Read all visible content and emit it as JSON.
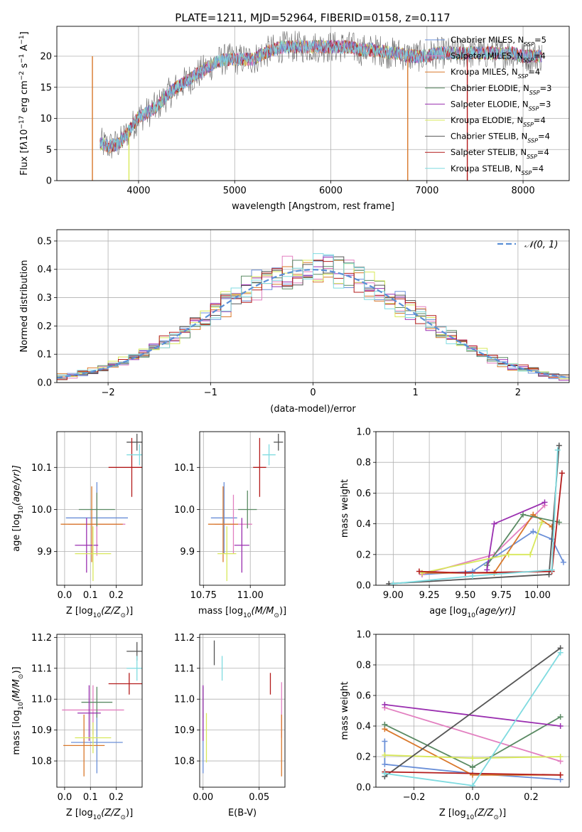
{
  "figure": {
    "title": "PLATE=1211, MJD=52964, FIBERID=0158, z=0.117"
  },
  "series": [
    {
      "name": "Chabrier MILES",
      "nssp": "5",
      "color": "#6a8fd8"
    },
    {
      "name": "Salpeter MILES",
      "nssp": "4",
      "color": "#e27fc0"
    },
    {
      "name": "Kroupa MILES",
      "nssp": "4",
      "color": "#d9782b"
    },
    {
      "name": "Chabrier ELODIE",
      "nssp": "3",
      "color": "#5a8a63"
    },
    {
      "name": "Salpeter ELODIE",
      "nssp": "3",
      "color": "#9a2fb0"
    },
    {
      "name": "Kroupa ELODIE",
      "nssp": "4",
      "color": "#d8e85a"
    },
    {
      "name": "Chabrier STELIB",
      "nssp": "4",
      "color": "#555555"
    },
    {
      "name": "Salpeter STELIB",
      "nssp": "4",
      "color": "#b31b1b"
    },
    {
      "name": "Kroupa STELIB",
      "nssp": "4",
      "color": "#7fdbe0"
    }
  ],
  "chart_data": [
    {
      "id": "spectrum",
      "type": "line",
      "xlabel": "wavelength [Angstrom, rest frame]",
      "ylabel_main": "Flux [f",
      "ylabel_sub": "λ",
      "ylabel_rest": "10",
      "ylabel_exp1": "−17",
      "ylabel_mid": " erg cm",
      "ylabel_exp2": "−2",
      "ylabel_mid2": " s",
      "ylabel_exp3": "−1",
      "ylabel_end": " A",
      "ylabel_exp4": "−1",
      "ylabel_close": "]",
      "xlim": [
        3150,
        8480
      ],
      "ylim": [
        0,
        24.8
      ],
      "xticks": [
        4000,
        5000,
        6000,
        7000,
        8000
      ],
      "yticks": [
        0,
        5,
        10,
        15,
        20
      ],
      "continuum": [
        [
          3600,
          6.0
        ],
        [
          3700,
          5.5
        ],
        [
          3800,
          6.0
        ],
        [
          3900,
          8.0
        ],
        [
          4000,
          10.2
        ],
        [
          4100,
          11.0
        ],
        [
          4200,
          12.0
        ],
        [
          4300,
          13.8
        ],
        [
          4400,
          15.0
        ],
        [
          4500,
          16.0
        ],
        [
          4600,
          17.0
        ],
        [
          4700,
          18.0
        ],
        [
          4800,
          19.0
        ],
        [
          4900,
          19.5
        ],
        [
          5000,
          19.5
        ],
        [
          5100,
          19.5
        ],
        [
          5200,
          19.5
        ],
        [
          5300,
          20.5
        ],
        [
          5400,
          21.0
        ],
        [
          5500,
          21.5
        ],
        [
          5600,
          21.5
        ],
        [
          5700,
          21.5
        ],
        [
          5800,
          21.5
        ],
        [
          5900,
          21.5
        ],
        [
          6000,
          21.5
        ],
        [
          6100,
          21.5
        ],
        [
          6200,
          21.5
        ],
        [
          6300,
          21.0
        ],
        [
          6400,
          21.0
        ],
        [
          6500,
          21.0
        ],
        [
          6600,
          20.5
        ],
        [
          6700,
          20.5
        ],
        [
          6800,
          20.0
        ],
        [
          6900,
          20.0
        ],
        [
          7000,
          20.0
        ],
        [
          7100,
          20.5
        ],
        [
          7200,
          20.5
        ],
        [
          7300,
          20.5
        ],
        [
          7400,
          20.5
        ],
        [
          7500,
          20.5
        ],
        [
          7600,
          20.5
        ],
        [
          7700,
          20.5
        ],
        [
          7800,
          20.5
        ],
        [
          7900,
          20.5
        ],
        [
          8000,
          20.0
        ],
        [
          8100,
          20.0
        ],
        [
          8200,
          20.0
        ]
      ],
      "drop_lines": [
        {
          "x": 3520,
          "color": "#d9782b"
        },
        {
          "x": 3900,
          "color": "#d8e85a"
        },
        {
          "x": 6800,
          "color": "#d9782b"
        },
        {
          "x": 7420,
          "color": "#b31b1b"
        }
      ]
    },
    {
      "id": "residuals",
      "type": "histogram",
      "xlabel": "(data-model)/error",
      "ylabel": "Normed distribution",
      "xlim": [
        -2.5,
        2.5
      ],
      "ylim": [
        0,
        0.54
      ],
      "xticks": [
        -2,
        -1,
        0,
        1,
        2
      ],
      "yticks": [
        0.0,
        0.1,
        0.2,
        0.3,
        0.4,
        0.5
      ],
      "legend": "𝒩(0, 1)",
      "bin_width": 0.1
    },
    {
      "id": "z-age",
      "type": "errorbar",
      "xlabel": "Z [log",
      "xlabel_sub": "10",
      "xlabel_rest": "(Z/Z",
      "xlabel_sun": "⊙",
      "xlabel_end": ")]",
      "ylabel": "age  [log",
      "ylabel_sub": "10",
      "ylabel_rest": "(age/yr)]",
      "xlim": [
        -0.03,
        0.3
      ],
      "ylim": [
        9.82,
        10.185
      ],
      "xticks": [
        0.0,
        0.1,
        0.2
      ],
      "yticks": [
        9.9,
        10.0,
        10.1
      ],
      "points": [
        {
          "x": 0.125,
          "y": 9.98,
          "xerr": 0.12,
          "yerr": 0.085
        },
        {
          "x": 0.125,
          "y": 9.965,
          "xerr": 0.11,
          "yerr": 0.075
        },
        {
          "x": 0.105,
          "y": 9.965,
          "xerr": 0.12,
          "yerr": 0.09
        },
        {
          "x": 0.125,
          "y": 10.0,
          "xerr": 0.07,
          "yerr": 0.04
        },
        {
          "x": 0.085,
          "y": 9.915,
          "xerr": 0.045,
          "yerr": 0.065
        },
        {
          "x": 0.11,
          "y": 9.895,
          "xerr": 0.07,
          "yerr": 0.065
        },
        {
          "x": 0.28,
          "y": 10.16,
          "xerr": 0.04,
          "yerr": 0.02
        },
        {
          "x": 0.26,
          "y": 10.1,
          "xerr": 0.09,
          "yerr": 0.07
        },
        {
          "x": 0.29,
          "y": 10.13,
          "xerr": 0.05,
          "yerr": 0.025
        }
      ]
    },
    {
      "id": "mass-age",
      "type": "errorbar",
      "xlabel": "mass [log",
      "xlabel_sub": "10",
      "xlabel_rest": "(M/M",
      "xlabel_sun": "⊙",
      "xlabel_end": ")]",
      "xlim": [
        10.73,
        11.185
      ],
      "ylim": [
        9.82,
        10.185
      ],
      "xticks": [
        10.75,
        11.0
      ],
      "yticks": [
        9.9,
        10.0,
        10.1
      ],
      "points": [
        {
          "x": 10.86,
          "y": 9.98,
          "xerr": 0.07,
          "yerr": 0.085
        },
        {
          "x": 10.91,
          "y": 9.965,
          "xerr": 0.1,
          "yerr": 0.07
        },
        {
          "x": 10.855,
          "y": 9.965,
          "xerr": 0.08,
          "yerr": 0.09
        },
        {
          "x": 10.985,
          "y": 10.0,
          "xerr": 0.05,
          "yerr": 0.045
        },
        {
          "x": 10.955,
          "y": 9.915,
          "xerr": 0.04,
          "yerr": 0.065
        },
        {
          "x": 10.875,
          "y": 9.895,
          "xerr": 0.05,
          "yerr": 0.065
        },
        {
          "x": 11.15,
          "y": 10.16,
          "xerr": 0.025,
          "yerr": 0.02
        },
        {
          "x": 11.05,
          "y": 10.1,
          "xerr": 0.035,
          "yerr": 0.07
        },
        {
          "x": 11.1,
          "y": 10.13,
          "xerr": 0.035,
          "yerr": 0.025
        }
      ]
    },
    {
      "id": "age-massweight",
      "type": "line",
      "xlabel": "age  [log",
      "xlabel_sub": "10",
      "xlabel_rest": "(age/yr)]",
      "ylabel": "mass weight",
      "xlim": [
        8.88,
        10.22
      ],
      "ylim": [
        0,
        1.0
      ],
      "xticks": [
        9.0,
        9.25,
        9.5,
        9.75,
        10.0
      ],
      "yticks": [
        0.0,
        0.2,
        0.4,
        0.6,
        0.8,
        1.0
      ],
      "lines": [
        [
          [
            9.2,
            0.07
          ],
          [
            9.55,
            0.09
          ],
          [
            9.97,
            0.35
          ],
          [
            10.1,
            0.3
          ],
          [
            10.18,
            0.15
          ]
        ],
        [
          [
            9.2,
            0.07
          ],
          [
            9.7,
            0.2
          ],
          [
            10.05,
            0.52
          ]
        ],
        [
          [
            9.2,
            0.08
          ],
          [
            9.7,
            0.08
          ],
          [
            9.97,
            0.46
          ],
          [
            10.1,
            0.38
          ]
        ],
        [
          [
            9.65,
            0.13
          ],
          [
            9.9,
            0.46
          ],
          [
            10.15,
            0.41
          ]
        ],
        [
          [
            9.65,
            0.1
          ],
          [
            9.7,
            0.4
          ],
          [
            10.05,
            0.54
          ]
        ],
        [
          [
            9.2,
            0.08
          ],
          [
            9.8,
            0.2
          ],
          [
            9.95,
            0.2
          ],
          [
            10.03,
            0.41
          ]
        ],
        [
          [
            8.97,
            0.01
          ],
          [
            10.08,
            0.07
          ],
          [
            10.15,
            0.91
          ]
        ],
        [
          [
            9.18,
            0.09
          ],
          [
            9.5,
            0.08
          ],
          [
            10.1,
            0.09
          ],
          [
            10.17,
            0.73
          ]
        ],
        [
          [
            9.0,
            0.01
          ],
          [
            9.55,
            0.06
          ],
          [
            10.1,
            0.1
          ],
          [
            10.14,
            0.88
          ]
        ]
      ]
    },
    {
      "id": "z-mass",
      "type": "errorbar",
      "xlabel": "Z [log",
      "xlabel_sub": "10",
      "xlabel_rest": "(Z/Z",
      "xlabel_sun": "⊙",
      "xlabel_end": ")]",
      "ylabel": "mass [log",
      "ylabel_sub": "10",
      "ylabel_rest": "(M/M",
      "ylabel_sun": "⊙",
      "ylabel_end": ")]",
      "xlim": [
        -0.03,
        0.3
      ],
      "ylim": [
        10.715,
        11.21
      ],
      "xticks": [
        0.0,
        0.1,
        0.2
      ],
      "yticks": [
        10.8,
        10.9,
        11.0,
        11.1,
        11.2
      ],
      "points": [
        {
          "x": 0.125,
          "y": 10.86,
          "xerr": 0.1,
          "yerr": 0.1
        },
        {
          "x": 0.11,
          "y": 10.965,
          "xerr": 0.12,
          "yerr": 0.08
        },
        {
          "x": 0.075,
          "y": 10.85,
          "xerr": 0.08,
          "yerr": 0.1
        },
        {
          "x": 0.125,
          "y": 10.99,
          "xerr": 0.06,
          "yerr": 0.05
        },
        {
          "x": 0.095,
          "y": 10.955,
          "xerr": 0.045,
          "yerr": 0.09
        },
        {
          "x": 0.11,
          "y": 10.875,
          "xerr": 0.07,
          "yerr": 0.05
        },
        {
          "x": 0.28,
          "y": 11.155,
          "xerr": 0.04,
          "yerr": 0.03
        },
        {
          "x": 0.25,
          "y": 11.05,
          "xerr": 0.08,
          "yerr": 0.035
        },
        {
          "x": 0.28,
          "y": 11.1,
          "xerr": 0.04,
          "yerr": 0.04
        }
      ]
    },
    {
      "id": "ebv-mass",
      "type": "errorbar",
      "xlabel": "E(B-V)",
      "xlim": [
        -0.003,
        0.073
      ],
      "ylim": [
        10.715,
        11.21
      ],
      "xticks": [
        0.0,
        0.05
      ],
      "yticks": [
        10.8,
        10.9,
        11.0,
        11.1,
        11.2
      ],
      "points": [
        {
          "x": 0.0,
          "y": 10.86,
          "xerr": 0,
          "yerr": 0.1
        },
        {
          "x": 0.07,
          "y": 10.965,
          "xerr": 0,
          "yerr": 0.09
        },
        {
          "x": 0.07,
          "y": 10.85,
          "xerr": 0,
          "yerr": 0.1
        },
        {
          "x": 0.0,
          "y": 10.99,
          "xerr": 0,
          "yerr": 0.05
        },
        {
          "x": 0.0,
          "y": 10.955,
          "xerr": 0,
          "yerr": 0.09
        },
        {
          "x": 0.003,
          "y": 10.875,
          "xerr": 0,
          "yerr": 0.08
        },
        {
          "x": 0.01,
          "y": 11.15,
          "xerr": 0,
          "yerr": 0.04
        },
        {
          "x": 0.06,
          "y": 11.05,
          "xerr": 0,
          "yerr": 0.035
        },
        {
          "x": 0.017,
          "y": 11.1,
          "xerr": 0,
          "yerr": 0.04
        }
      ]
    },
    {
      "id": "z-massweight",
      "type": "line",
      "xlabel": "Z [log",
      "xlabel_sub": "10",
      "xlabel_rest": "(Z/Z",
      "xlabel_sun": "⊙",
      "xlabel_end": ")]",
      "ylabel": "mass weight",
      "xlim": [
        -0.33,
        0.33
      ],
      "ylim": [
        0,
        1.0
      ],
      "xticks": [
        -0.2,
        0.0,
        0.2
      ],
      "yticks": [
        0.0,
        0.2,
        0.4,
        0.6,
        0.8,
        1.0
      ],
      "lines": [
        [
          [
            -0.3,
            0.3
          ],
          [
            -0.3,
            0.15
          ],
          [
            0.0,
            0.09
          ],
          [
            0.3,
            0.05
          ]
        ],
        [
          [
            -0.3,
            0.52
          ],
          [
            0.3,
            0.17
          ]
        ],
        [
          [
            -0.3,
            0.38
          ],
          [
            0.0,
            0.08
          ],
          [
            0.3,
            0.08
          ]
        ],
        [
          [
            -0.3,
            0.41
          ],
          [
            0.0,
            0.13
          ],
          [
            0.3,
            0.46
          ]
        ],
        [
          [
            -0.3,
            0.54
          ],
          [
            0.3,
            0.4
          ]
        ],
        [
          [
            -0.3,
            0.21
          ],
          [
            0.0,
            0.19
          ],
          [
            0.3,
            0.2
          ]
        ],
        [
          [
            -0.3,
            0.07
          ],
          [
            0.3,
            0.91
          ]
        ],
        [
          [
            -0.3,
            0.1
          ],
          [
            0.3,
            0.08
          ]
        ],
        [
          [
            -0.3,
            0.09
          ],
          [
            0.0,
            0.01
          ],
          [
            0.3,
            0.88
          ]
        ]
      ]
    }
  ]
}
